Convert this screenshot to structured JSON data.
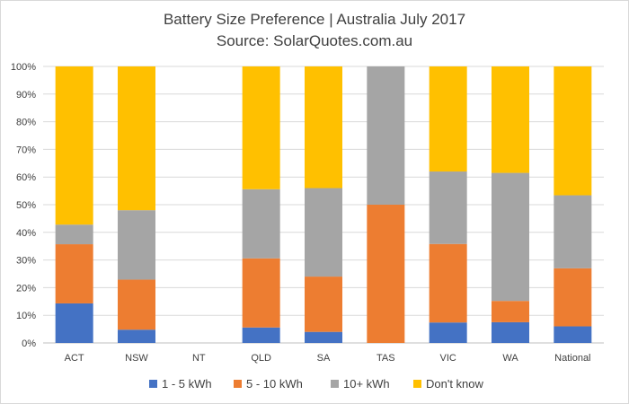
{
  "chart_data": {
    "type": "bar",
    "stacked": true,
    "title": "Battery Size Preference | Australia July 2017",
    "subtitle": "Source: SolarQuotes.com.au",
    "categories": [
      "ACT",
      "NSW",
      "NT",
      "QLD",
      "SA",
      "TAS",
      "VIC",
      "WA",
      "National"
    ],
    "series": [
      {
        "name": "1 - 5 kWh",
        "color": "#4472C4",
        "values": [
          14.3,
          4.8,
          0,
          5.6,
          4.0,
          0,
          7.4,
          7.5,
          6.0
        ]
      },
      {
        "name": "5 - 10 kWh",
        "color": "#ED7D31",
        "values": [
          21.4,
          18.1,
          0,
          25.0,
          20.0,
          50.0,
          28.4,
          7.7,
          21.0
        ]
      },
      {
        "name": "10+ kWh",
        "color": "#A5A5A5",
        "values": [
          7.1,
          25.1,
          0,
          25.0,
          32.0,
          50.0,
          26.2,
          46.3,
          26.4
        ]
      },
      {
        "name": "Don't know",
        "color": "#FFC000",
        "values": [
          57.2,
          52.0,
          0,
          44.4,
          44.0,
          0,
          38.0,
          38.5,
          46.6
        ]
      }
    ],
    "yticks": [
      "0%",
      "10%",
      "20%",
      "30%",
      "40%",
      "50%",
      "60%",
      "70%",
      "80%",
      "90%",
      "100%"
    ],
    "ylim": [
      0,
      100
    ],
    "grid": true,
    "legend": "bottom"
  }
}
